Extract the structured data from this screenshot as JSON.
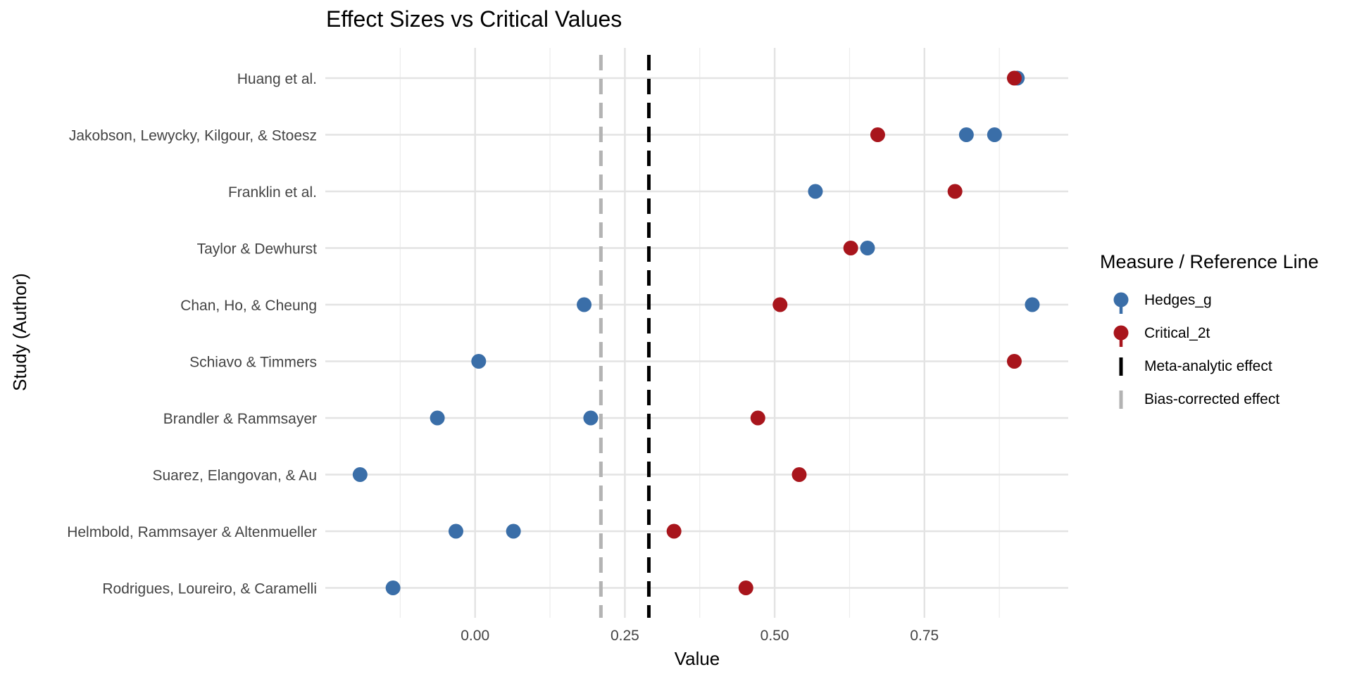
{
  "chart_data": {
    "type": "scatter",
    "title": "Effect Sizes vs Critical Values",
    "xlabel": "Value",
    "ylabel": "Study (Author)",
    "xlim": [
      -0.25,
      0.99
    ],
    "x_ticks": [
      0.0,
      0.25,
      0.5,
      0.75
    ],
    "x_tick_labels": [
      "0.00",
      "0.25",
      "0.50",
      "0.75"
    ],
    "grid": true,
    "legend_position": "right",
    "legend_title": "Measure / Reference Line",
    "categories": [
      "Huang et al.",
      "Jakobson, Lewycky, Kilgour, & Stoesz",
      "Franklin et al.",
      "Taylor & Dewhurst",
      "Chan, Ho, & Cheung",
      "Schiavo & Timmers",
      "Brandler & Rammsayer",
      "Suarez, Elangovan, & Au",
      "Helmbold, Rammsayer & Altenmueller",
      "Rodrigues, Loureiro, & Caramelli"
    ],
    "series": [
      {
        "name": "Hedges_g",
        "color": "#3a6ea8",
        "points": [
          {
            "y": "Huang et al.",
            "x": 0.905
          },
          {
            "y": "Jakobson, Lewycky, Kilgour, & Stoesz",
            "x": 0.82
          },
          {
            "y": "Jakobson, Lewycky, Kilgour, & Stoesz",
            "x": 0.867
          },
          {
            "y": "Franklin et al.",
            "x": 0.568
          },
          {
            "y": "Taylor & Dewhurst",
            "x": 0.655
          },
          {
            "y": "Chan, Ho, & Cheung",
            "x": 0.182
          },
          {
            "y": "Chan, Ho, & Cheung",
            "x": 0.93
          },
          {
            "y": "Schiavo & Timmers",
            "x": 0.006
          },
          {
            "y": "Brandler & Rammsayer",
            "x": -0.063
          },
          {
            "y": "Brandler & Rammsayer",
            "x": 0.193
          },
          {
            "y": "Suarez, Elangovan, & Au",
            "x": -0.192
          },
          {
            "y": "Helmbold, Rammsayer & Altenmueller",
            "x": -0.032
          },
          {
            "y": "Helmbold, Rammsayer & Altenmueller",
            "x": 0.064
          },
          {
            "y": "Rodrigues, Loureiro, & Caramelli",
            "x": -0.137
          }
        ]
      },
      {
        "name": "Critical_2t",
        "color": "#a8151c",
        "points": [
          {
            "y": "Huang et al.",
            "x": 0.9
          },
          {
            "y": "Jakobson, Lewycky, Kilgour, & Stoesz",
            "x": 0.672
          },
          {
            "y": "Franklin et al.",
            "x": 0.801
          },
          {
            "y": "Taylor & Dewhurst",
            "x": 0.627
          },
          {
            "y": "Chan, Ho, & Cheung",
            "x": 0.509
          },
          {
            "y": "Schiavo & Timmers",
            "x": 0.9
          },
          {
            "y": "Brandler & Rammsayer",
            "x": 0.472
          },
          {
            "y": "Suarez, Elangovan, & Au",
            "x": 0.541
          },
          {
            "y": "Helmbold, Rammsayer & Altenmueller",
            "x": 0.332
          },
          {
            "y": "Rodrigues, Loureiro, & Caramelli",
            "x": 0.452
          }
        ]
      }
    ],
    "reference_lines": [
      {
        "name": "Meta-analytic effect",
        "x": 0.29,
        "color": "#000000",
        "style": "dashed"
      },
      {
        "name": "Bias-corrected effect",
        "x": 0.21,
        "color": "#b3b3b3",
        "style": "dashed"
      }
    ]
  }
}
